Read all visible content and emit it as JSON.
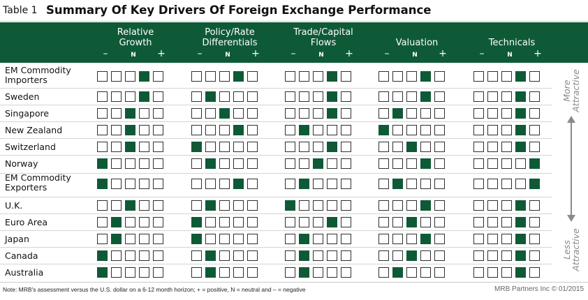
{
  "table_label": "Table 1",
  "title": "Summary Of Key Drivers Of Foreign Exchange Performance",
  "symbols": {
    "negative": "–",
    "neutral": "N",
    "positive": "+"
  },
  "columns": [
    {
      "label": "Relative\nGrowth"
    },
    {
      "label": "Policy/Rate\nDifferentials"
    },
    {
      "label": "Trade/Capital\nFlows"
    },
    {
      "label": "Valuation"
    },
    {
      "label": "Technicals"
    }
  ],
  "rows": [
    {
      "label": "EM Commodity\nImporters",
      "ratings": [
        4,
        4,
        4,
        4,
        4
      ]
    },
    {
      "label": "Sweden",
      "ratings": [
        4,
        2,
        4,
        4,
        4
      ]
    },
    {
      "label": "Singapore",
      "ratings": [
        3,
        3,
        4,
        2,
        4
      ]
    },
    {
      "label": "New Zealand",
      "ratings": [
        3,
        4,
        2,
        1,
        4
      ]
    },
    {
      "label": "Switzerland",
      "ratings": [
        3,
        1,
        4,
        3,
        4
      ]
    },
    {
      "label": "Norway",
      "ratings": [
        1,
        2,
        3,
        4,
        5
      ]
    },
    {
      "label": "EM Commodity\nExporters",
      "ratings": [
        1,
        4,
        2,
        2,
        5
      ]
    },
    {
      "label": "U.K.",
      "ratings": [
        3,
        2,
        1,
        4,
        4
      ]
    },
    {
      "label": "Euro Area",
      "ratings": [
        2,
        1,
        4,
        3,
        4
      ]
    },
    {
      "label": "Japan",
      "ratings": [
        2,
        1,
        2,
        4,
        4
      ]
    },
    {
      "label": "Canada",
      "ratings": [
        1,
        2,
        2,
        3,
        4
      ]
    },
    {
      "label": "Australia",
      "ratings": [
        1,
        2,
        2,
        2,
        4
      ]
    }
  ],
  "side_top": "More\nAttractive",
  "side_bottom": "Less\nAttractive",
  "footnote": "Note: MRB's assessment versus the U.S. dollar on a 6-12 month horizon; + = positive, N = neutral and – = negative",
  "credit": "MRB Partners Inc © 01/2015",
  "colors": {
    "accent": "#0e5a37",
    "arrow": "#8a8a8a"
  }
}
